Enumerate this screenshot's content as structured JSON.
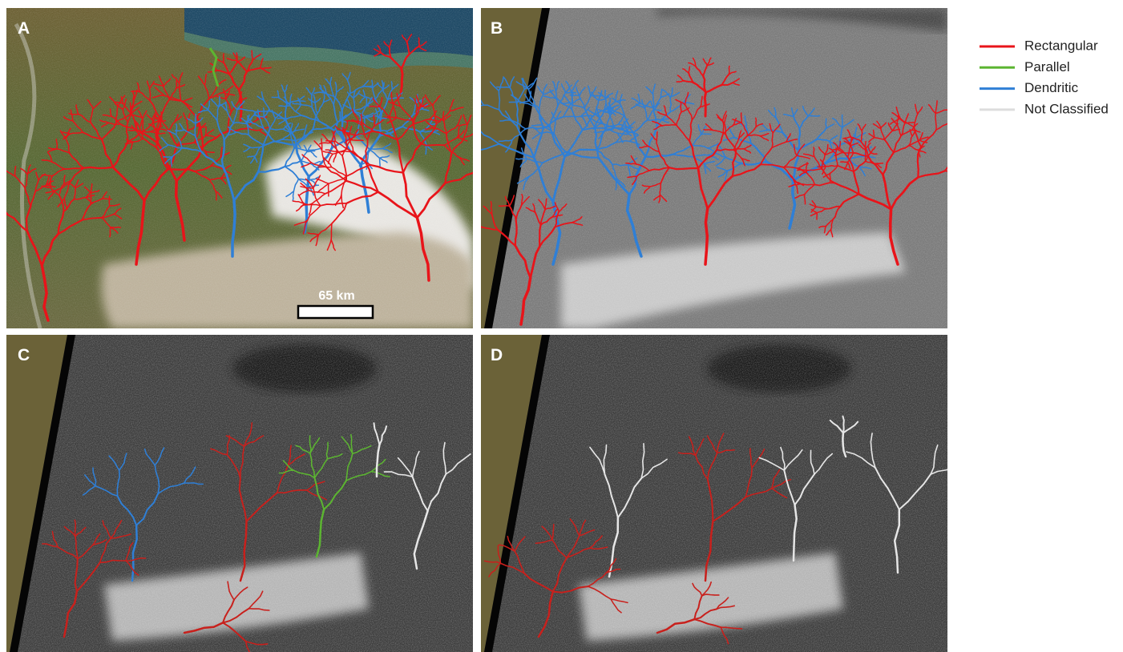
{
  "panels": [
    {
      "label": "A"
    },
    {
      "label": "B"
    },
    {
      "label": "C"
    },
    {
      "label": "D"
    }
  ],
  "scale_bar": "65 km",
  "legend": [
    {
      "label": "Rectangular",
      "color": "#e8141a"
    },
    {
      "label": "Parallel",
      "color": "#5cb531"
    },
    {
      "label": "Dendritic",
      "color": "#2f7fd6"
    },
    {
      "label": "Not Classified",
      "color": "#dddddd"
    }
  ]
}
